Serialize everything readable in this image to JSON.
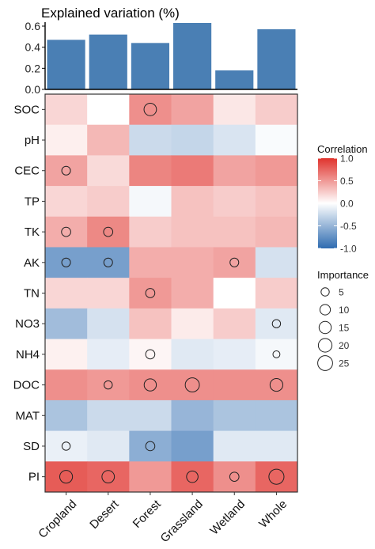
{
  "chart_data": [
    {
      "type": "bar",
      "title": "Explained variation (%)",
      "categories": [
        "Cropland",
        "Desert",
        "Forest",
        "Grassland",
        "Wetland",
        "Whole"
      ],
      "values": [
        0.47,
        0.52,
        0.44,
        0.63,
        0.18,
        0.57
      ],
      "ylim": [
        0,
        0.6
      ],
      "yticks": [
        "0.0",
        "0.2",
        "0.4",
        "0.6"
      ],
      "bar_color": "#4a7fb4"
    },
    {
      "type": "heatmap",
      "x": [
        "Cropland",
        "Desert",
        "Forest",
        "Grassland",
        "Wetland",
        "Whole"
      ],
      "y": [
        "SOC",
        "pH",
        "CEC",
        "TP",
        "TK",
        "AK",
        "TN",
        "NO3",
        "NH4",
        "DOC",
        "MAT",
        "SD",
        "PI"
      ],
      "values": [
        [
          0.2,
          0.0,
          0.55,
          0.45,
          0.12,
          0.25
        ],
        [
          0.08,
          0.35,
          -0.25,
          -0.28,
          -0.18,
          -0.03
        ],
        [
          0.45,
          0.18,
          0.6,
          0.65,
          0.45,
          0.5
        ],
        [
          0.2,
          0.25,
          -0.05,
          0.3,
          0.25,
          0.3
        ],
        [
          0.4,
          0.58,
          0.25,
          0.3,
          0.3,
          0.35
        ],
        [
          -0.65,
          -0.65,
          0.4,
          0.4,
          0.45,
          -0.2
        ],
        [
          0.2,
          0.2,
          0.5,
          0.4,
          0.0,
          0.25
        ],
        [
          -0.45,
          -0.2,
          0.3,
          0.1,
          0.25,
          -0.15
        ],
        [
          0.07,
          -0.12,
          0.05,
          -0.15,
          -0.12,
          -0.05
        ],
        [
          0.55,
          0.5,
          0.55,
          0.55,
          0.55,
          0.55
        ],
        [
          -0.4,
          -0.25,
          -0.25,
          -0.5,
          -0.4,
          -0.4
        ],
        [
          -0.1,
          -0.15,
          -0.55,
          -0.65,
          -0.15,
          -0.15
        ],
        [
          0.8,
          0.75,
          0.5,
          0.75,
          0.55,
          0.75
        ]
      ],
      "importance": [
        [
          null,
          null,
          16,
          null,
          null,
          null
        ],
        [
          null,
          null,
          null,
          null,
          null,
          null
        ],
        [
          6,
          null,
          null,
          null,
          null,
          null
        ],
        [
          null,
          null,
          null,
          null,
          null,
          null
        ],
        [
          7,
          7,
          null,
          null,
          null,
          null
        ],
        [
          6,
          6,
          null,
          null,
          6,
          null
        ],
        [
          null,
          null,
          7,
          null,
          null,
          null
        ],
        [
          null,
          null,
          null,
          null,
          null,
          5
        ],
        [
          null,
          null,
          7,
          null,
          null,
          3
        ],
        [
          null,
          5,
          15,
          22,
          null,
          17
        ],
        [
          null,
          null,
          null,
          null,
          null,
          null
        ],
        [
          5,
          null,
          7,
          null,
          null,
          null
        ],
        [
          17,
          16,
          null,
          13,
          7,
          26
        ]
      ],
      "color_scale": {
        "low": "#2e6bb0",
        "mid": "#ffffff",
        "high": "#e0332d",
        "min": -1.0,
        "max": 1.0
      },
      "legend_correlation": {
        "title": "Correlation",
        "tick_labels": [
          "1.0",
          "0.5",
          "0.0",
          "-0.5",
          "-1.0"
        ],
        "tick_values": [
          1.0,
          0.5,
          0.0,
          -0.5,
          -1.0
        ]
      },
      "legend_importance": {
        "title": "Importance",
        "values": [
          5,
          10,
          15,
          20,
          25
        ],
        "labels": [
          "5",
          "10",
          "15",
          "20",
          "25"
        ]
      }
    }
  ]
}
